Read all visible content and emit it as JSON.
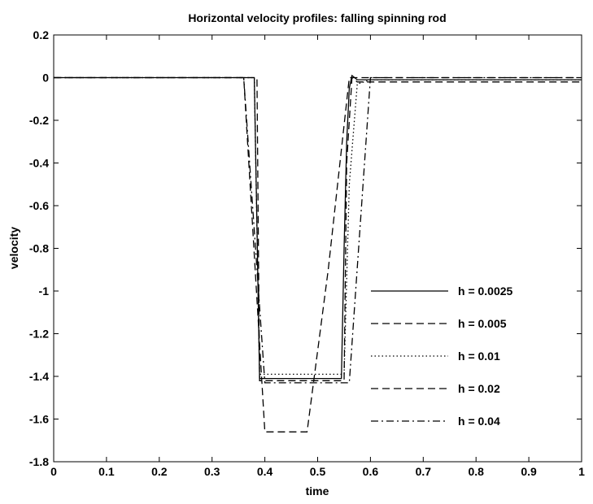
{
  "chart_data": {
    "type": "line",
    "title": "Horizontal velocity profiles: falling spinning rod",
    "xlabel": "time",
    "ylabel": "velocity",
    "xlim": [
      0,
      1
    ],
    "ylim": [
      -1.8,
      0.2
    ],
    "xticks": [
      "0",
      "0.1",
      "0.2",
      "0.3",
      "0.4",
      "0.5",
      "0.6",
      "0.7",
      "0.8",
      "0.9",
      "1"
    ],
    "yticks": [
      "0.2",
      "0",
      "-0.2",
      "-0.4",
      "-0.6",
      "-0.8",
      "-1",
      "-1.2",
      "-1.4",
      "-1.6",
      "-1.8"
    ],
    "grid": false,
    "legend_position": "right",
    "series": [
      {
        "name": "h = 0.0025",
        "style": "solid",
        "x": [
          0,
          0.38,
          0.385,
          0.39,
          0.545,
          0.55,
          0.555,
          0.56,
          0.565,
          0.57,
          0.575,
          0.58,
          0.59,
          0.6,
          1
        ],
        "y": [
          0,
          0,
          -0.7,
          -1.41,
          -1.41,
          -0.8,
          -0.3,
          -0.05,
          0.01,
          0.0,
          -0.01,
          -0.01,
          -0.01,
          -0.01,
          -0.01
        ]
      },
      {
        "name": "h = 0.005",
        "style": "dashed",
        "x": [
          0,
          0.385,
          0.39,
          0.55,
          0.555,
          0.565,
          0.575,
          0.6,
          1
        ],
        "y": [
          0,
          0,
          -1.42,
          -1.42,
          -0.4,
          0.0,
          -0.02,
          -0.02,
          -0.02
        ]
      },
      {
        "name": "h = 0.01",
        "style": "dotted",
        "x": [
          0,
          0.38,
          0.39,
          0.55,
          0.56,
          0.575,
          0.6,
          1
        ],
        "y": [
          0,
          0,
          -1.39,
          -1.39,
          -0.5,
          -0.03,
          -0.01,
          -0.01
        ]
      },
      {
        "name": "h = 0.02",
        "style": "dashed",
        "x": [
          0,
          0.36,
          0.4,
          0.48,
          0.52,
          0.56,
          1
        ],
        "y": [
          0,
          0,
          -1.66,
          -1.66,
          -0.9,
          0.0,
          0.0
        ]
      },
      {
        "name": "h = 0.04",
        "style": "dashdot",
        "x": [
          0,
          0.36,
          0.4,
          0.56,
          0.6,
          1
        ],
        "y": [
          0,
          0,
          -1.43,
          -1.43,
          0.0,
          0.0
        ]
      }
    ]
  }
}
